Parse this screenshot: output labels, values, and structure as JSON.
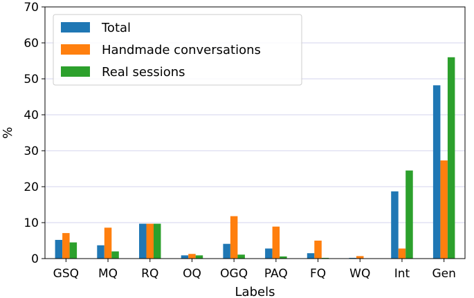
{
  "chart_data": {
    "type": "bar",
    "title": "",
    "xlabel": "Labels",
    "ylabel": "%",
    "ylim": [
      0,
      70
    ],
    "yticks": [
      0,
      10,
      20,
      30,
      40,
      50,
      60,
      70
    ],
    "grid": "horizontal",
    "legend_position": "top-left",
    "categories": [
      "GSQ",
      "MQ",
      "RQ",
      "OQ",
      "OGQ",
      "PAQ",
      "FQ",
      "WQ",
      "Int",
      "Gen"
    ],
    "series": [
      {
        "name": "Total",
        "color": "#1f77b4",
        "values": [
          5.2,
          3.7,
          9.7,
          0.9,
          4.1,
          2.8,
          1.5,
          0.2,
          18.7,
          48.2
        ]
      },
      {
        "name": "Handmade conversations",
        "color": "#ff7f0e",
        "values": [
          7.1,
          8.6,
          9.7,
          1.3,
          11.8,
          8.9,
          5.0,
          0.7,
          2.8,
          27.3
        ]
      },
      {
        "name": "Real sessions",
        "color": "#2ca02c",
        "values": [
          4.5,
          2.0,
          9.7,
          0.9,
          1.1,
          0.6,
          0.2,
          0.0,
          24.5,
          56.0
        ]
      }
    ]
  }
}
